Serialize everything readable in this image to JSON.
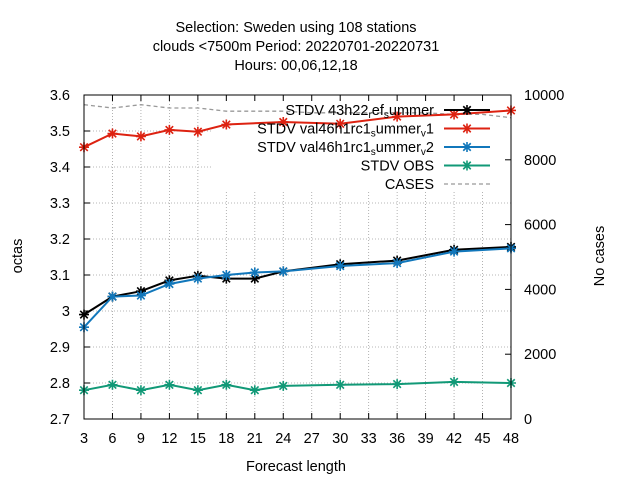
{
  "chart_data": {
    "type": "line",
    "title_lines": [
      "Selection: Sweden using   108 stations",
      "clouds <7500m   Period: 20220701-20220731",
      "Hours:  00,06,12,18"
    ],
    "xlabel": "Forecast length",
    "ylabel": "octas",
    "y2label": "No cases",
    "xlim": [
      3,
      48
    ],
    "ylim": [
      2.7,
      3.6
    ],
    "y2lim": [
      0,
      10000
    ],
    "x_ticks": [
      3,
      6,
      9,
      12,
      15,
      18,
      21,
      24,
      27,
      30,
      33,
      36,
      39,
      42,
      45,
      48
    ],
    "y_ticks": [
      2.7,
      2.8,
      2.9,
      3,
      3.1,
      3.2,
      3.3,
      3.4,
      3.5,
      3.6
    ],
    "y_tick_labels": [
      "2.7",
      "2.8",
      "2.9",
      "3",
      "3.1",
      "3.2",
      "3.3",
      "3.4",
      "3.5",
      "3.6"
    ],
    "y2_ticks": [
      0,
      2000,
      4000,
      6000,
      8000,
      10000
    ],
    "legend_position": "top-right",
    "series": [
      {
        "name": "STDV 43h22_ref_summer",
        "legend": {
          "parts": [
            [
              "STDV 43h22",
              ""
            ],
            [
              "r",
              "sub"
            ],
            [
              "ef",
              ""
            ],
            [
              "s",
              "sub"
            ],
            [
              "ummer",
              ""
            ]
          ]
        },
        "color": "#000000",
        "axis": "y",
        "x": [
          3,
          6,
          9,
          12,
          15,
          18,
          21,
          24,
          30,
          36,
          42,
          48
        ],
        "values": [
          2.99,
          3.04,
          3.055,
          3.085,
          3.098,
          3.09,
          3.09,
          3.11,
          3.13,
          3.14,
          3.17,
          3.178
        ]
      },
      {
        "name": "STDV val46h1rc1_summer_v1",
        "legend": {
          "parts": [
            [
              "STDV val46h1rc1",
              ""
            ],
            [
              "s",
              "sub"
            ],
            [
              "ummer",
              ""
            ],
            [
              "v",
              "sub"
            ],
            [
              "1",
              ""
            ]
          ]
        },
        "color": "#dd2211",
        "axis": "y",
        "x": [
          3,
          6,
          9,
          12,
          15,
          18,
          24,
          30,
          36,
          42,
          48
        ],
        "values": [
          3.455,
          3.493,
          3.485,
          3.503,
          3.498,
          3.518,
          3.525,
          3.52,
          3.54,
          3.546,
          3.557
        ]
      },
      {
        "name": "STDV val46h1rc1_summer_v2",
        "legend": {
          "parts": [
            [
              "STDV val46h1rc1",
              ""
            ],
            [
              "s",
              "sub"
            ],
            [
              "ummer",
              ""
            ],
            [
              "v",
              "sub"
            ],
            [
              "2",
              ""
            ]
          ]
        },
        "color": "#1177bb",
        "axis": "y",
        "x": [
          3,
          6,
          9,
          12,
          15,
          18,
          21,
          24,
          30,
          36,
          42,
          48
        ],
        "values": [
          2.955,
          3.04,
          3.043,
          3.075,
          3.09,
          3.1,
          3.107,
          3.11,
          3.125,
          3.133,
          3.165,
          3.174
        ]
      },
      {
        "name": "STDV OBS",
        "legend": {
          "parts": [
            [
              "STDV OBS",
              ""
            ]
          ]
        },
        "color": "#119977",
        "axis": "y",
        "x": [
          3,
          6,
          9,
          12,
          15,
          18,
          21,
          24,
          30,
          36,
          42,
          48
        ],
        "values": [
          2.78,
          2.795,
          2.78,
          2.795,
          2.78,
          2.795,
          2.78,
          2.792,
          2.795,
          2.797,
          2.803,
          2.8
        ]
      },
      {
        "name": "CASES",
        "legend": {
          "parts": [
            [
              "CASES",
              ""
            ]
          ]
        },
        "color": "#999999",
        "axis": "y2",
        "dashed": true,
        "x": [
          3,
          6,
          9,
          12,
          15,
          18,
          21,
          24,
          27,
          30,
          33,
          36,
          39,
          42,
          45,
          48
        ],
        "values": [
          9700,
          9600,
          9700,
          9600,
          9600,
          9500,
          9500,
          9500,
          9450,
          9450,
          9450,
          9450,
          9450,
          9400,
          9400,
          9300
        ]
      }
    ]
  }
}
